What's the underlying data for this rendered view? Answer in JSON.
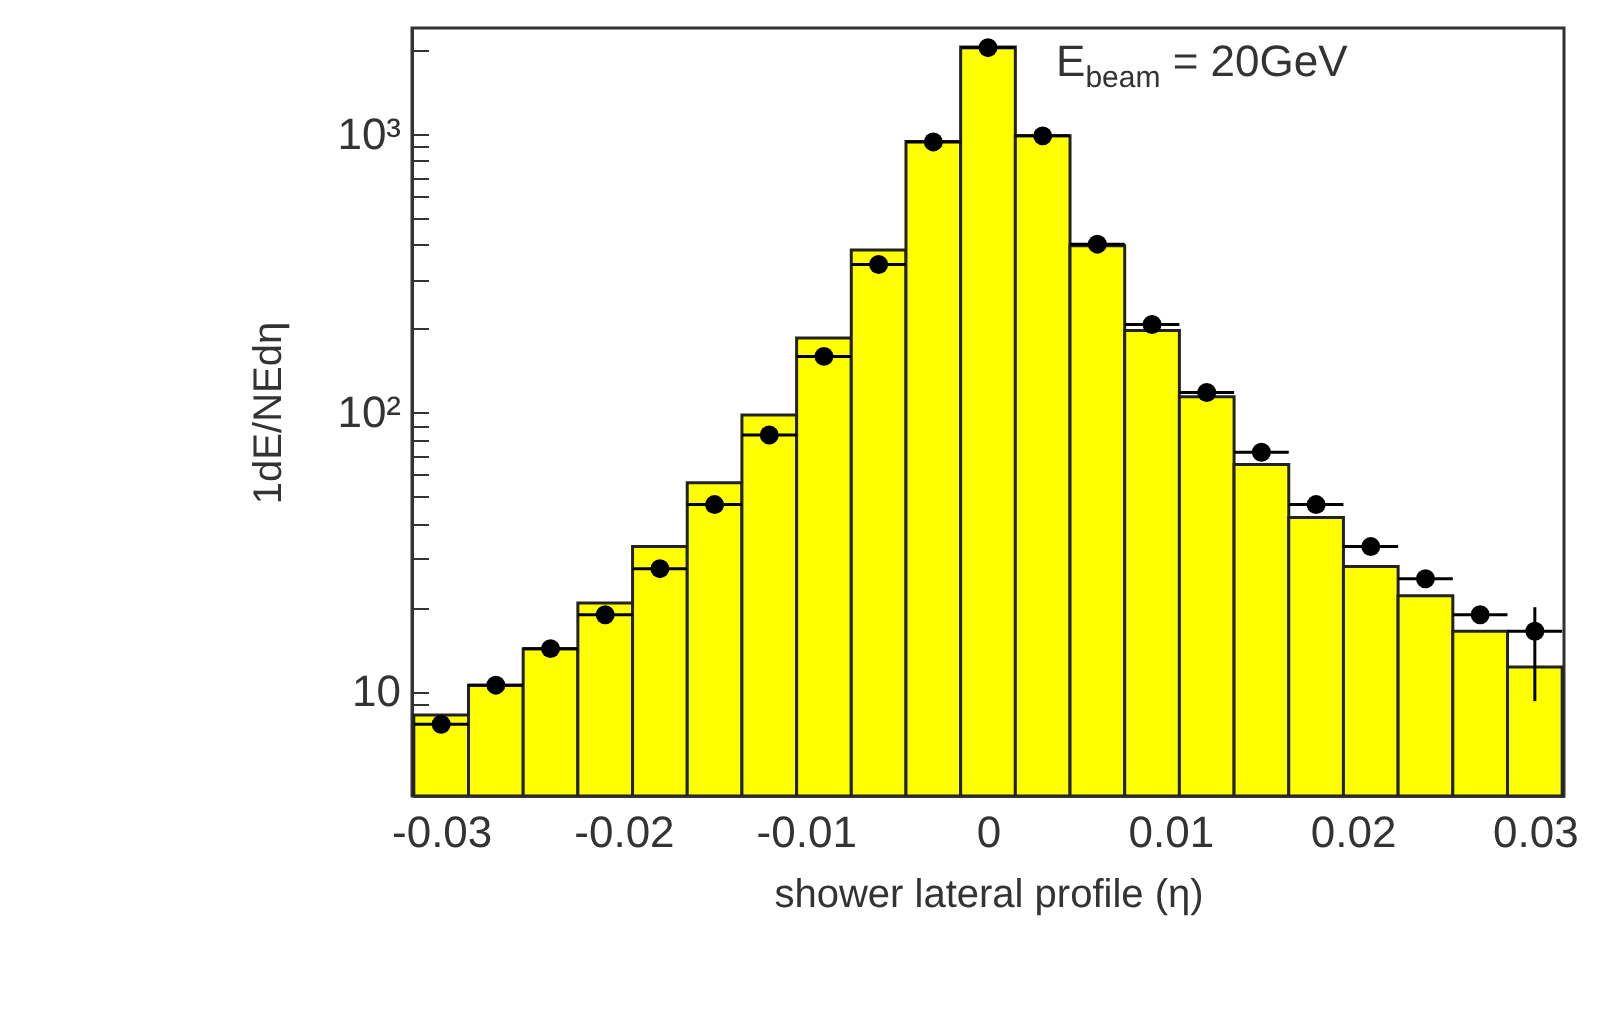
{
  "chart_data": {
    "type": "histogram",
    "xlabel": "shower lateral profile (η)",
    "ylabel": "1dE/NEdη",
    "log": "y",
    "annotations": [
      "E$_{beam}$ = 20GeV"
    ],
    "xlim": [
      -0.0316,
      0.0316
    ],
    "ylim": [
      4.2,
      2400
    ],
    "xticks": [
      -0.03,
      -0.02,
      -0.01,
      0,
      0.01,
      0.02,
      0.03
    ],
    "yticks": [
      {
        "value": 5,
        "label": null
      },
      {
        "value": 6,
        "label": null
      },
      {
        "value": 7,
        "label": null
      },
      {
        "value": 8,
        "label": null
      },
      {
        "value": 9,
        "label": null
      },
      {
        "value": 10,
        "label": "10"
      },
      {
        "value": 20,
        "label": null
      },
      {
        "value": 30,
        "label": null
      },
      {
        "value": 40,
        "label": null
      },
      {
        "value": 50,
        "label": null
      },
      {
        "value": 60,
        "label": null
      },
      {
        "value": 70,
        "label": null
      },
      {
        "value": 80,
        "label": null
      },
      {
        "value": 90,
        "label": null
      },
      {
        "value": 100,
        "label": "10²"
      },
      {
        "value": 200,
        "label": null
      },
      {
        "value": 300,
        "label": null
      },
      {
        "value": 400,
        "label": null
      },
      {
        "value": 500,
        "label": null
      },
      {
        "value": 600,
        "label": null
      },
      {
        "value": 700,
        "label": null
      },
      {
        "value": 800,
        "label": null
      },
      {
        "value": 900,
        "label": null
      },
      {
        "value": 1000,
        "label": "10³"
      },
      {
        "value": 2000,
        "label": null
      }
    ],
    "series": [
      {
        "type": "histogram",
        "color": "#ffff00",
        "bins": [
          -0.0315,
          -0.0285,
          -0.0255,
          -0.0225,
          -0.0195,
          -0.0165,
          -0.0135,
          -0.0105,
          -0.0075,
          -0.0045,
          -0.0015,
          0.0015,
          0.0045,
          0.0075,
          0.0105,
          0.0135,
          0.0165,
          0.0195,
          0.0225,
          0.0255,
          0.0285,
          0.0315
        ],
        "values": [
          8.2,
          10.5,
          14.2,
          20.7,
          33,
          56,
          98,
          185,
          383,
          940,
          2050,
          984,
          397,
          197,
          114,
          65,
          42,
          28,
          22,
          16.4,
          12.2
        ]
      },
      {
        "type": "scatter",
        "color": "#000000",
        "marker": "circle",
        "x": [
          -0.03,
          -0.027,
          -0.024,
          -0.021,
          -0.018,
          -0.015,
          -0.012,
          -0.009,
          -0.006,
          -0.003,
          0,
          0.003,
          0.006,
          0.009,
          0.012,
          0.015,
          0.018,
          0.021,
          0.024,
          0.027,
          0.03
        ],
        "values": [
          7.6,
          10.5,
          14.2,
          18.8,
          27.5,
          46.7,
          83,
          159,
          340,
          936,
          2040,
          984,
          402,
          207,
          118,
          72,
          46.7,
          33,
          25.3,
          18.8,
          16.4
        ],
        "xerrors": [
          0.0015,
          0.0015,
          0.0015,
          0.0015,
          0.0015,
          0.0015,
          0.0015,
          0.0015,
          0.0015,
          0.0015,
          0.0015,
          0.0015,
          0.0015,
          0.0015,
          0.0015,
          0.0015,
          0.0015,
          0.0015,
          0.0015,
          0.0015,
          0.0015
        ],
        "errors": [
          null,
          null,
          null,
          null,
          null,
          null,
          null,
          null,
          null,
          null,
          null,
          null,
          null,
          null,
          null,
          null,
          null,
          null,
          null,
          null,
          [
            9.2,
            20
          ]
        ]
      }
    ]
  }
}
